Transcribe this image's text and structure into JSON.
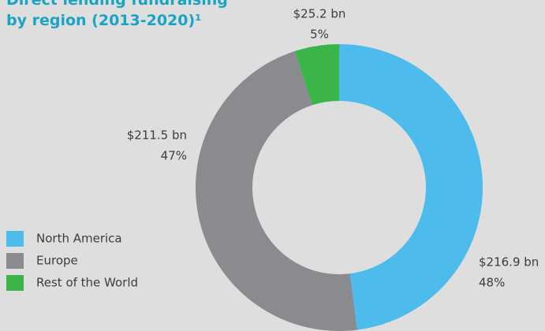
{
  "chart_data": {
    "type": "donut",
    "title": [
      "Direct lending fundraising",
      "by region (2013-2020)¹"
    ],
    "categories": [
      "North America",
      "Europe",
      "Rest of the World"
    ],
    "values": [
      48,
      47,
      5
    ],
    "value_labels": [
      "48%",
      "47%",
      "5%"
    ],
    "amounts": [
      216.9,
      211.5,
      25.2
    ],
    "amount_labels": [
      "$216.9 bn",
      "$211.5 bn",
      "$25.2 bn"
    ],
    "colors": [
      "#4dbbeb",
      "#898b8e",
      "#3bb54a"
    ]
  }
}
